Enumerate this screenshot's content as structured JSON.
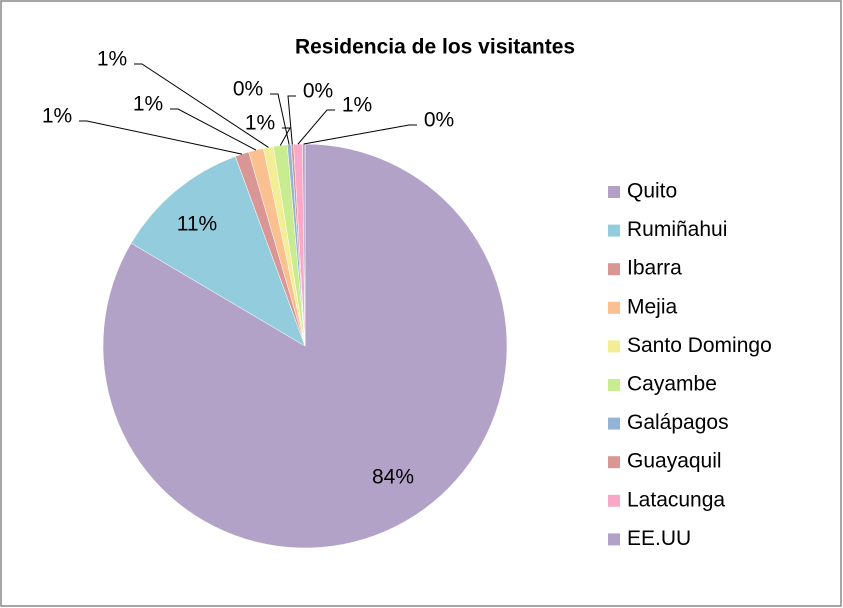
{
  "chart_data": {
    "type": "pie",
    "title": "Residencia de los visitantes",
    "categories": [
      "Quito",
      "Rumiñahui",
      "Ibarra",
      "Mejia",
      "Santo Domingo",
      "Cayambe",
      "Galápagos",
      "Guayaquil",
      "Latacunga",
      "EE.UU"
    ],
    "values": [
      83.5,
      10.9,
      1.1,
      1.2,
      0.8,
      1.1,
      0.3,
      0.2,
      0.7,
      0.2
    ],
    "value_labels": [
      "84%",
      "11%",
      "1%",
      "1%",
      "1%",
      "1%",
      "0%",
      "0%",
      "1%",
      "0%"
    ],
    "colors": [
      "#b3a2c7",
      "#93cddd",
      "#d99694",
      "#fac090",
      "#f3ee95",
      "#c8ec8f",
      "#95b3d7",
      "#d99694",
      "#f9a8c8",
      "#b3a2c7"
    ],
    "legend": "right"
  }
}
